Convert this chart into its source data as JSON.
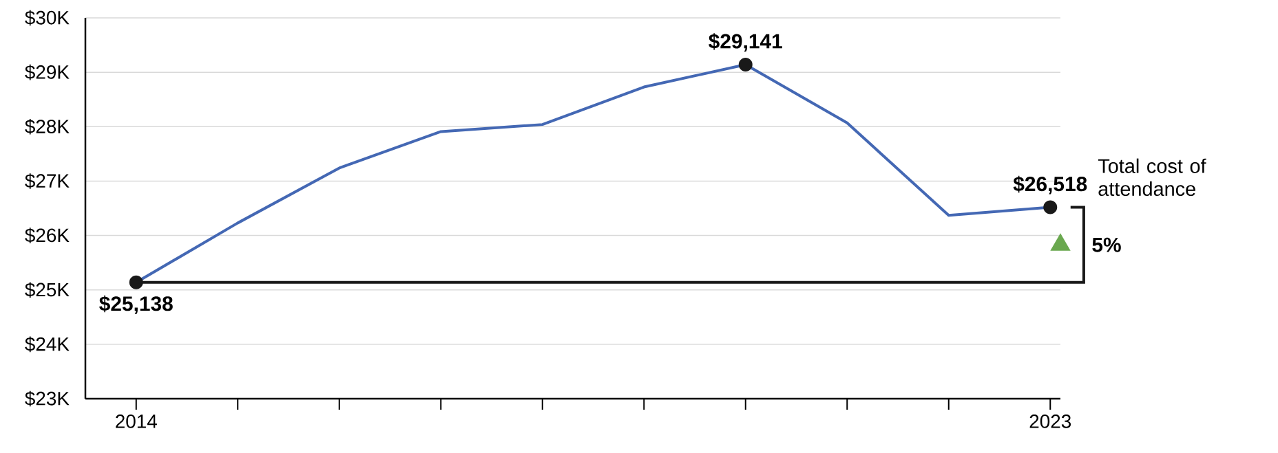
{
  "chart_data": {
    "type": "line",
    "x": [
      2014,
      2015,
      2016,
      2017,
      2018,
      2019,
      2020,
      2021,
      2022,
      2023
    ],
    "series": [
      {
        "name": "Total cost of attendance",
        "color": "#4468b4",
        "values": [
          25138,
          26230,
          27240,
          27910,
          28040,
          28730,
          29141,
          28070,
          26370,
          26518
        ]
      }
    ],
    "xlim": [
      2013.5,
      2023.1
    ],
    "xticks": [
      2014,
      {
        "value": 2015,
        "label": null
      },
      {
        "value": 2016,
        "label": null
      },
      {
        "value": 2017,
        "label": null
      },
      {
        "value": 2018,
        "label": null
      },
      {
        "value": 2019,
        "label": null
      },
      {
        "value": 2020,
        "label": null
      },
      {
        "value": 2021,
        "label": null
      },
      {
        "value": 2022,
        "label": null
      },
      2023
    ],
    "ylim": [
      23000,
      30000
    ],
    "yticks": [
      {
        "value": 23000,
        "label": "$23K"
      },
      {
        "value": 24000,
        "label": "$24K"
      },
      {
        "value": 25000,
        "label": "$25K"
      },
      {
        "value": 26000,
        "label": "$26K"
      },
      {
        "value": 27000,
        "label": "$27K"
      },
      {
        "value": 28000,
        "label": "$28K"
      },
      {
        "value": 29000,
        "label": "$29K"
      },
      {
        "value": 30000,
        "label": "$30K"
      }
    ],
    "grid": "y",
    "legend": false,
    "marker": "none",
    "line_style": "solid",
    "annotations": [
      {
        "text": "$25,138",
        "x": 2014,
        "y": 25138
      },
      {
        "text": "$29,141",
        "x": 2020,
        "y": 29141
      },
      {
        "text": "$26,518",
        "x": 2023,
        "y": 26518
      },
      "5%"
    ]
  }
}
